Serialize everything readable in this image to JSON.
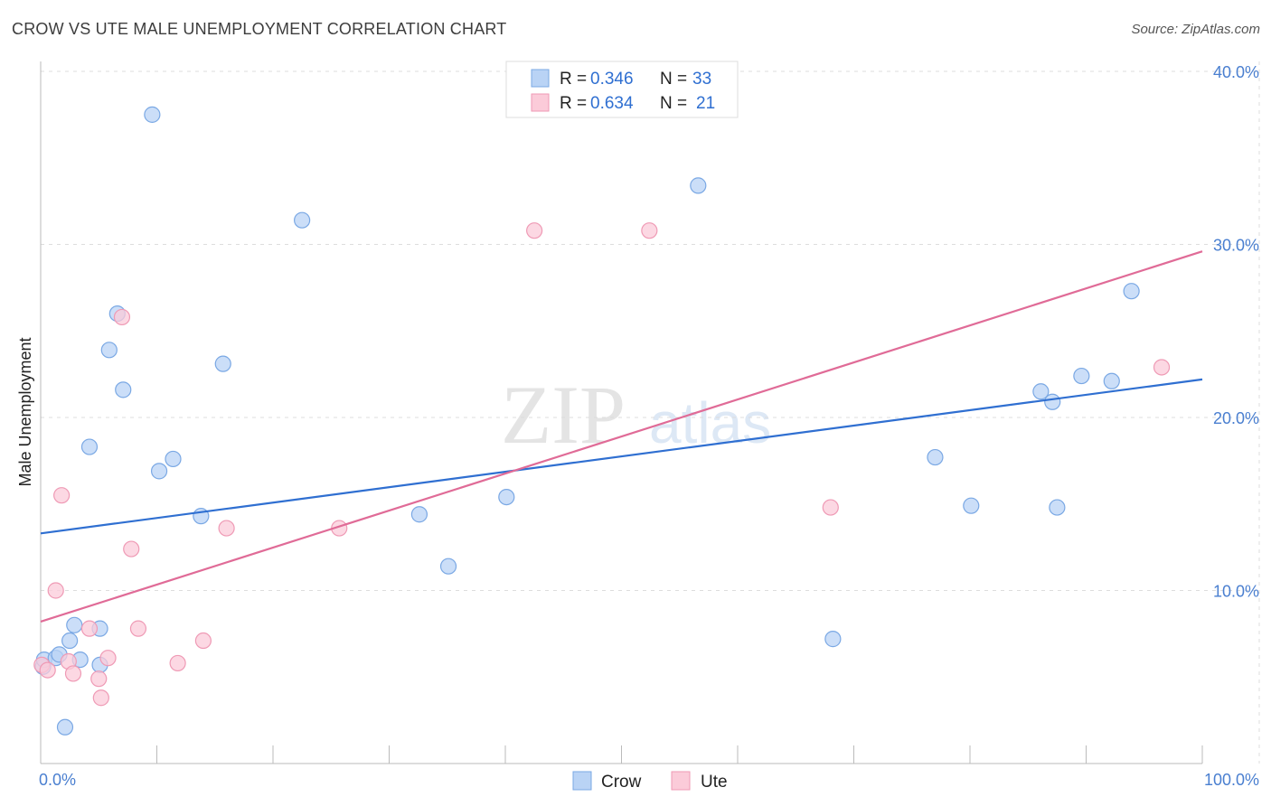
{
  "header": {
    "title": "CROW VS UTE MALE UNEMPLOYMENT CORRELATION CHART",
    "source": "Source: ZipAtlas.com"
  },
  "watermark": {
    "zip": "ZIP",
    "atlas": "atlas"
  },
  "colors": {
    "crow_fill": "#b9d3f5",
    "crow_stroke": "#7aa8e4",
    "crow_line": "#2f6fd1",
    "ute_fill": "#fbcbd9",
    "ute_stroke": "#ef9ab5",
    "ute_line": "#e06b97",
    "grid": "#dddddd",
    "axis_label": "#4a7fd0"
  },
  "legend": {
    "rows": [
      {
        "r_label": "R = ",
        "r_value": "0.346",
        "n_label": "N = ",
        "n_value": "33"
      },
      {
        "r_label": "R = ",
        "r_value": "0.634",
        "n_label": "N = ",
        "n_value": "21"
      }
    ]
  },
  "bottom_legend": {
    "crow": "Crow",
    "ute": "Ute"
  },
  "chart_data": {
    "type": "scatter",
    "title": "CROW VS UTE MALE UNEMPLOYMENT CORRELATION CHART",
    "xlabel": "",
    "ylabel": "Male Unemployment",
    "xlim": [
      0,
      100
    ],
    "ylim": [
      0,
      40
    ],
    "x_tick_labels": [
      "0.0%",
      "100.0%"
    ],
    "y_ticks": [
      10,
      20,
      30,
      40
    ],
    "y_tick_labels": [
      "10.0%",
      "20.0%",
      "30.0%",
      "40.0%"
    ],
    "legend_position": "top-center",
    "series": [
      {
        "name": "Crow",
        "r": 0.346,
        "n": 33,
        "trend": {
          "x": [
            0,
            100
          ],
          "y": [
            13.3,
            22.2
          ]
        },
        "points": [
          {
            "x": 0.2,
            "y": 5.6
          },
          {
            "x": 0.3,
            "y": 6.0
          },
          {
            "x": 1.3,
            "y": 6.1
          },
          {
            "x": 1.6,
            "y": 6.3
          },
          {
            "x": 2.1,
            "y": 2.1
          },
          {
            "x": 2.5,
            "y": 7.1
          },
          {
            "x": 2.9,
            "y": 8.0
          },
          {
            "x": 3.4,
            "y": 6.0
          },
          {
            "x": 4.2,
            "y": 18.3
          },
          {
            "x": 5.1,
            "y": 7.8
          },
          {
            "x": 5.1,
            "y": 5.7
          },
          {
            "x": 5.9,
            "y": 23.9
          },
          {
            "x": 6.6,
            "y": 26.0
          },
          {
            "x": 7.1,
            "y": 21.6
          },
          {
            "x": 9.6,
            "y": 37.5
          },
          {
            "x": 10.2,
            "y": 16.9
          },
          {
            "x": 11.4,
            "y": 17.6
          },
          {
            "x": 13.8,
            "y": 14.3
          },
          {
            "x": 15.7,
            "y": 23.1
          },
          {
            "x": 22.5,
            "y": 31.4
          },
          {
            "x": 32.6,
            "y": 14.4
          },
          {
            "x": 35.1,
            "y": 11.4
          },
          {
            "x": 40.1,
            "y": 15.4
          },
          {
            "x": 56.6,
            "y": 33.4
          },
          {
            "x": 68.2,
            "y": 7.2
          },
          {
            "x": 77.0,
            "y": 17.7
          },
          {
            "x": 80.1,
            "y": 14.9
          },
          {
            "x": 86.1,
            "y": 21.5
          },
          {
            "x": 87.1,
            "y": 20.9
          },
          {
            "x": 87.5,
            "y": 14.8
          },
          {
            "x": 89.6,
            "y": 22.4
          },
          {
            "x": 92.2,
            "y": 22.1
          },
          {
            "x": 93.9,
            "y": 27.3
          }
        ]
      },
      {
        "name": "Ute",
        "r": 0.634,
        "n": 21,
        "trend": {
          "x": [
            0,
            100
          ],
          "y": [
            8.2,
            29.6
          ]
        },
        "points": [
          {
            "x": 0.1,
            "y": 5.7
          },
          {
            "x": 0.6,
            "y": 5.4
          },
          {
            "x": 1.3,
            "y": 10.0
          },
          {
            "x": 1.8,
            "y": 15.5
          },
          {
            "x": 2.4,
            "y": 5.9
          },
          {
            "x": 2.8,
            "y": 5.2
          },
          {
            "x": 4.2,
            "y": 7.8
          },
          {
            "x": 5.0,
            "y": 4.9
          },
          {
            "x": 5.2,
            "y": 3.8
          },
          {
            "x": 5.8,
            "y": 6.1
          },
          {
            "x": 7.0,
            "y": 25.8
          },
          {
            "x": 7.8,
            "y": 12.4
          },
          {
            "x": 8.4,
            "y": 7.8
          },
          {
            "x": 11.8,
            "y": 5.8
          },
          {
            "x": 14.0,
            "y": 7.1
          },
          {
            "x": 16.0,
            "y": 13.6
          },
          {
            "x": 25.7,
            "y": 13.6
          },
          {
            "x": 42.5,
            "y": 30.8
          },
          {
            "x": 52.4,
            "y": 30.8
          },
          {
            "x": 68.0,
            "y": 14.8
          },
          {
            "x": 96.5,
            "y": 22.9
          }
        ]
      }
    ]
  }
}
